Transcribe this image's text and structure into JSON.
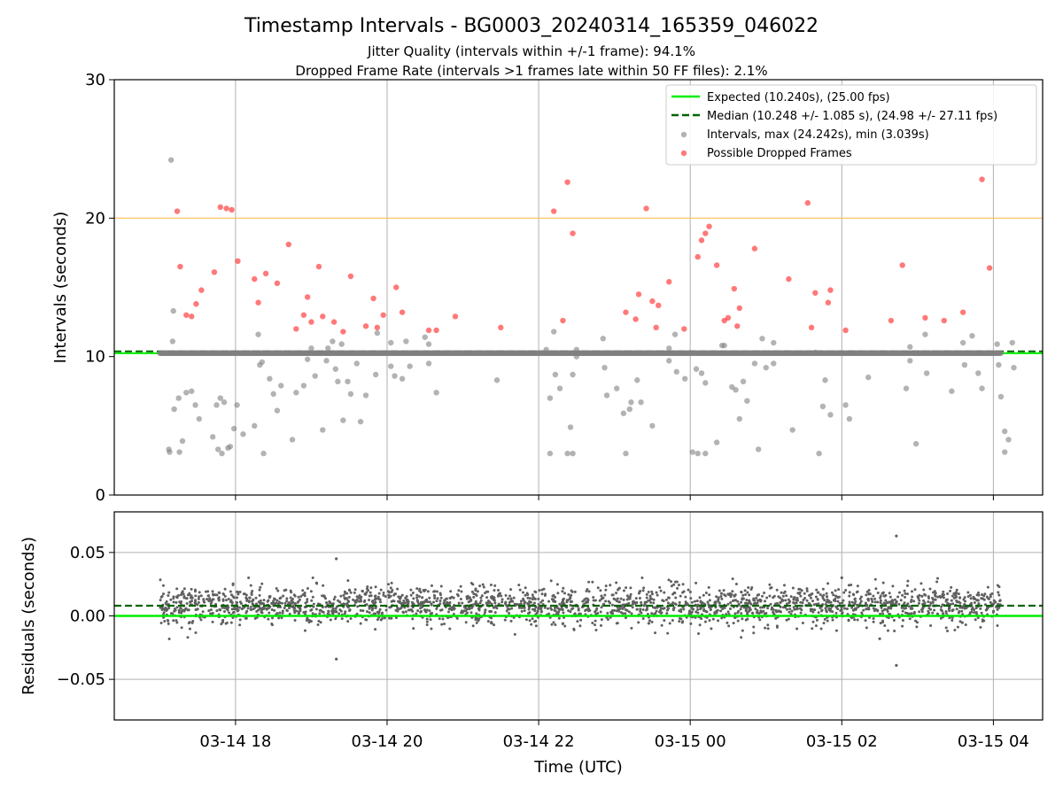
{
  "figure": {
    "title": "Timestamp Intervals - BG0003_20240314_165359_046022",
    "subtitle_1": "Jitter Quality (intervals within +/-1 frame): 94.1%",
    "subtitle_2": "Dropped Frame Rate (intervals >1 frames late within 50 FF files): 2.1%",
    "xlabel": "Time (UTC)"
  },
  "colors": {
    "expected": "#00ee00",
    "median": "#006400",
    "intervals": "#808080",
    "dropped": "#ff2020",
    "threshold": "#ffc04d",
    "residuals": "#606060",
    "grid": "#b0b0b0"
  },
  "chart_data": [
    {
      "type": "scatter",
      "ylabel": "Intervals (seconds)",
      "ylim": [
        0,
        30
      ],
      "yticks": [
        0,
        10,
        20,
        30
      ],
      "ytick_labels": [
        "0",
        "10",
        "20",
        "30"
      ],
      "xlim_hours": [
        16.4,
        28.65
      ],
      "grid": true,
      "legend_position": "top-right",
      "threshold_line": 20,
      "expected": {
        "label": "Expected (10.240s), (25.00 fps)",
        "value": 10.24
      },
      "median": {
        "label": "Median (10.248 +/- 1.085 s), (24.98 +/- 27.11 fps)",
        "value": 10.248
      },
      "baseline_interval": 10.248,
      "baseline_range_hours": [
        17.0,
        28.1
      ],
      "intervals_label": "Intervals, max (24.242s), min (3.039s)",
      "dropped_label": "Possible Dropped Frames",
      "intervals": [
        [
          17.12,
          3.3
        ],
        [
          17.13,
          3.1
        ],
        [
          17.15,
          24.2
        ],
        [
          17.18,
          13.3
        ],
        [
          17.17,
          11.1
        ],
        [
          17.19,
          6.2
        ],
        [
          17.25,
          7.0
        ],
        [
          17.26,
          3.1
        ],
        [
          17.3,
          3.9
        ],
        [
          17.35,
          7.4
        ],
        [
          17.42,
          7.5
        ],
        [
          17.47,
          6.5
        ],
        [
          17.52,
          5.5
        ],
        [
          17.7,
          4.2
        ],
        [
          17.75,
          6.5
        ],
        [
          17.77,
          3.3
        ],
        [
          17.8,
          7.0
        ],
        [
          17.82,
          3.0
        ],
        [
          17.85,
          6.7
        ],
        [
          17.9,
          3.4
        ],
        [
          17.93,
          3.5
        ],
        [
          17.98,
          4.8
        ],
        [
          18.02,
          6.5
        ],
        [
          18.1,
          4.4
        ],
        [
          18.25,
          5.0
        ],
        [
          18.3,
          11.6
        ],
        [
          18.32,
          9.4
        ],
        [
          18.35,
          9.6
        ],
        [
          18.37,
          3.0
        ],
        [
          18.45,
          8.4
        ],
        [
          18.5,
          7.3
        ],
        [
          18.55,
          6.1
        ],
        [
          18.6,
          7.9
        ],
        [
          18.75,
          4.0
        ],
        [
          18.8,
          7.4
        ],
        [
          18.9,
          7.9
        ],
        [
          18.95,
          9.8
        ],
        [
          19.0,
          10.6
        ],
        [
          19.05,
          8.6
        ],
        [
          19.15,
          4.7
        ],
        [
          19.2,
          9.7
        ],
        [
          19.22,
          10.6
        ],
        [
          19.28,
          11.1
        ],
        [
          19.32,
          9.1
        ],
        [
          19.35,
          8.2
        ],
        [
          19.4,
          10.9
        ],
        [
          19.42,
          5.4
        ],
        [
          19.48,
          8.2
        ],
        [
          19.52,
          7.3
        ],
        [
          19.6,
          9.5
        ],
        [
          19.65,
          5.3
        ],
        [
          19.72,
          7.2
        ],
        [
          19.85,
          8.7
        ],
        [
          19.87,
          11.7
        ],
        [
          20.05,
          11.0
        ],
        [
          20.05,
          9.3
        ],
        [
          20.1,
          8.6
        ],
        [
          20.2,
          8.4
        ],
        [
          20.25,
          11.1
        ],
        [
          20.3,
          9.3
        ],
        [
          20.5,
          11.4
        ],
        [
          20.55,
          9.5
        ],
        [
          20.55,
          10.9
        ],
        [
          20.65,
          7.4
        ],
        [
          21.45,
          8.3
        ],
        [
          22.1,
          10.5
        ],
        [
          22.15,
          7.0
        ],
        [
          22.15,
          3.0
        ],
        [
          22.2,
          11.8
        ],
        [
          22.22,
          8.7
        ],
        [
          22.28,
          7.7
        ],
        [
          22.38,
          3.0
        ],
        [
          22.42,
          4.9
        ],
        [
          22.45,
          8.7
        ],
        [
          22.45,
          3.0
        ],
        [
          22.5,
          10.5
        ],
        [
          22.5,
          10.0
        ],
        [
          22.85,
          11.3
        ],
        [
          22.87,
          9.2
        ],
        [
          22.9,
          7.2
        ],
        [
          23.03,
          7.7
        ],
        [
          23.12,
          5.9
        ],
        [
          23.15,
          3.0
        ],
        [
          23.2,
          6.2
        ],
        [
          23.22,
          6.7
        ],
        [
          23.3,
          8.3
        ],
        [
          23.35,
          6.7
        ],
        [
          23.5,
          5.0
        ],
        [
          23.72,
          10.6
        ],
        [
          23.72,
          9.7
        ],
        [
          23.8,
          11.6
        ],
        [
          23.82,
          8.9
        ],
        [
          23.93,
          8.4
        ],
        [
          24.03,
          3.1
        ],
        [
          24.08,
          9.1
        ],
        [
          24.1,
          3.0
        ],
        [
          24.15,
          8.8
        ],
        [
          24.2,
          8.1
        ],
        [
          24.2,
          3.0
        ],
        [
          24.35,
          3.8
        ],
        [
          24.42,
          10.8
        ],
        [
          24.45,
          10.8
        ],
        [
          24.55,
          7.8
        ],
        [
          24.6,
          7.6
        ],
        [
          24.65,
          5.5
        ],
        [
          24.7,
          8.2
        ],
        [
          24.75,
          6.8
        ],
        [
          24.85,
          9.5
        ],
        [
          24.9,
          3.3
        ],
        [
          24.95,
          11.3
        ],
        [
          25.0,
          9.2
        ],
        [
          25.1,
          11.0
        ],
        [
          25.1,
          9.5
        ],
        [
          25.35,
          4.7
        ],
        [
          25.65,
          10.3
        ],
        [
          25.7,
          3.0
        ],
        [
          25.75,
          6.4
        ],
        [
          25.78,
          8.3
        ],
        [
          25.85,
          5.8
        ],
        [
          26.05,
          6.5
        ],
        [
          26.1,
          5.5
        ],
        [
          26.35,
          8.5
        ],
        [
          26.85,
          7.7
        ],
        [
          26.9,
          10.7
        ],
        [
          26.9,
          9.7
        ],
        [
          26.98,
          3.7
        ],
        [
          27.1,
          11.6
        ],
        [
          27.12,
          8.8
        ],
        [
          27.45,
          7.5
        ],
        [
          27.6,
          11.0
        ],
        [
          27.62,
          9.4
        ],
        [
          27.72,
          11.5
        ],
        [
          27.8,
          8.8
        ],
        [
          27.85,
          7.7
        ],
        [
          28.05,
          10.9
        ],
        [
          28.07,
          9.4
        ],
        [
          28.1,
          7.1
        ],
        [
          28.15,
          4.6
        ],
        [
          28.15,
          3.1
        ],
        [
          28.2,
          4.0
        ],
        [
          28.25,
          11.0
        ],
        [
          28.27,
          9.2
        ]
      ],
      "dropped": [
        [
          17.23,
          20.5
        ],
        [
          17.27,
          16.5
        ],
        [
          17.35,
          13.0
        ],
        [
          17.42,
          12.9
        ],
        [
          17.48,
          13.8
        ],
        [
          17.55,
          14.8
        ],
        [
          17.72,
          16.1
        ],
        [
          17.8,
          20.8
        ],
        [
          17.88,
          20.7
        ],
        [
          17.95,
          20.6
        ],
        [
          18.03,
          16.9
        ],
        [
          18.25,
          15.6
        ],
        [
          18.3,
          13.9
        ],
        [
          18.4,
          16.0
        ],
        [
          18.55,
          15.3
        ],
        [
          18.7,
          18.1
        ],
        [
          18.8,
          12.0
        ],
        [
          18.9,
          13.0
        ],
        [
          18.95,
          14.3
        ],
        [
          19.0,
          12.5
        ],
        [
          19.1,
          16.5
        ],
        [
          19.15,
          12.9
        ],
        [
          19.3,
          12.5
        ],
        [
          19.42,
          11.8
        ],
        [
          19.52,
          15.8
        ],
        [
          19.72,
          12.2
        ],
        [
          19.82,
          14.2
        ],
        [
          19.87,
          12.1
        ],
        [
          19.95,
          13.0
        ],
        [
          20.12,
          15.0
        ],
        [
          20.2,
          13.2
        ],
        [
          20.55,
          11.9
        ],
        [
          20.65,
          11.9
        ],
        [
          20.9,
          12.9
        ],
        [
          21.5,
          12.1
        ],
        [
          22.2,
          20.5
        ],
        [
          22.32,
          12.6
        ],
        [
          22.38,
          22.6
        ],
        [
          22.45,
          18.9
        ],
        [
          23.15,
          13.2
        ],
        [
          23.28,
          12.7
        ],
        [
          23.32,
          14.5
        ],
        [
          23.42,
          20.7
        ],
        [
          23.5,
          14.0
        ],
        [
          23.55,
          12.1
        ],
        [
          23.58,
          13.7
        ],
        [
          23.72,
          15.4
        ],
        [
          23.92,
          12.0
        ],
        [
          24.1,
          17.2
        ],
        [
          24.15,
          18.4
        ],
        [
          24.2,
          18.9
        ],
        [
          24.25,
          19.4
        ],
        [
          24.35,
          16.6
        ],
        [
          24.45,
          12.6
        ],
        [
          24.5,
          12.8
        ],
        [
          24.58,
          14.9
        ],
        [
          24.62,
          12.2
        ],
        [
          24.65,
          13.5
        ],
        [
          24.85,
          17.8
        ],
        [
          25.3,
          15.6
        ],
        [
          25.55,
          21.1
        ],
        [
          25.6,
          12.1
        ],
        [
          25.65,
          14.6
        ],
        [
          25.82,
          13.9
        ],
        [
          25.85,
          14.8
        ],
        [
          26.05,
          11.9
        ],
        [
          26.65,
          12.6
        ],
        [
          26.8,
          16.6
        ],
        [
          27.1,
          12.8
        ],
        [
          27.35,
          12.6
        ],
        [
          27.6,
          13.2
        ],
        [
          27.85,
          22.8
        ],
        [
          27.95,
          16.4
        ]
      ]
    },
    {
      "type": "scatter",
      "ylabel": "Residuals (seconds)",
      "ylim": [
        -0.082,
        0.082
      ],
      "yticks": [
        -0.05,
        0.0,
        0.05
      ],
      "ytick_labels": [
        "−0.05",
        "0.00",
        "0.05"
      ],
      "xlim_hours": [
        16.4,
        28.65
      ],
      "xticks_hours": [
        18,
        20,
        22,
        24,
        26,
        28
      ],
      "xtick_labels": [
        "03-14 18",
        "03-14 20",
        "03-14 22",
        "03-15 00",
        "03-15 02",
        "03-15 04"
      ],
      "grid": true,
      "expected_residual": 0.0,
      "median_residual": 0.008,
      "residual_center": 0.008,
      "residual_spread": 0.0075,
      "point_count": 2400,
      "outliers": [
        [
          19.33,
          0.045
        ],
        [
          19.33,
          -0.034
        ],
        [
          26.0,
          0.03
        ],
        [
          26.72,
          0.063
        ],
        [
          26.72,
          -0.039
        ],
        [
          26.5,
          -0.018
        ]
      ]
    }
  ]
}
